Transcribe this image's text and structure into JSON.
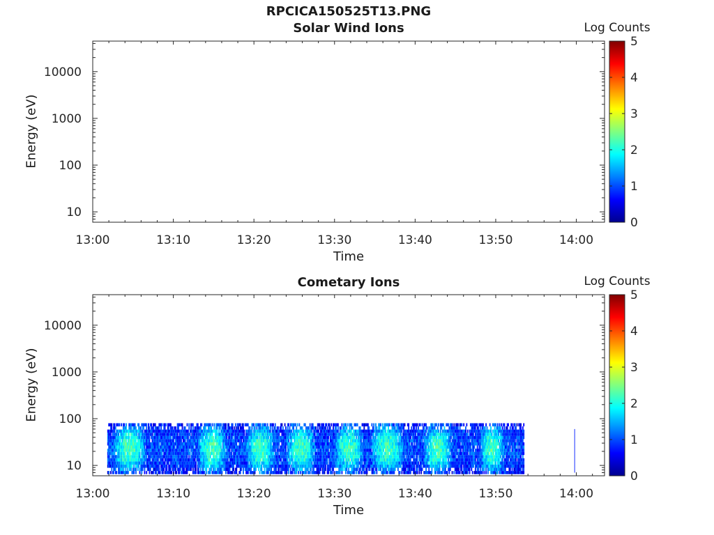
{
  "figure": {
    "title": "RPCICA150525T13.PNG"
  },
  "chart_data": [
    {
      "type": "heatmap",
      "title": "Solar Wind Ions",
      "xlabel": "Time",
      "ylabel": "Energy (eV)",
      "x_ticks": [
        "13:00",
        "13:10",
        "13:20",
        "13:30",
        "13:40",
        "13:50",
        "14:00"
      ],
      "y_ticks": [
        "10",
        "100",
        "1000",
        "10000"
      ],
      "y_scale": "log",
      "ylim": [
        6,
        45000
      ],
      "xlim_minutes": [
        0,
        63.5
      ],
      "colorbar": {
        "label": "Log Counts",
        "ticks": [
          "0",
          "1",
          "2",
          "3",
          "4",
          "5"
        ],
        "range": [
          0,
          5
        ],
        "colormap": "jet"
      },
      "data": []
    },
    {
      "type": "heatmap",
      "title": "Cometary Ions",
      "xlabel": "Time",
      "ylabel": "Energy (eV)",
      "x_ticks": [
        "13:00",
        "13:10",
        "13:20",
        "13:30",
        "13:40",
        "13:50",
        "14:00"
      ],
      "y_ticks": [
        "10",
        "100",
        "1000",
        "10000"
      ],
      "y_scale": "log",
      "ylim": [
        6,
        45000
      ],
      "xlim_minutes": [
        0,
        63.5
      ],
      "colorbar": {
        "label": "Log Counts",
        "ticks": [
          "0",
          "1",
          "2",
          "3",
          "4",
          "5"
        ],
        "range": [
          0,
          5
        ],
        "colormap": "jet"
      },
      "data": {
        "time_range_minutes": [
          1.8,
          53.4
        ],
        "energy_range_eV": [
          6.5,
          80
        ],
        "peak_log_counts": 2.2,
        "typical_log_counts": 1.0,
        "high_intensity_intervals_minutes": [
          [
            3,
            6
          ],
          [
            13.5,
            16
          ],
          [
            19.5,
            22
          ],
          [
            24.5,
            27
          ],
          [
            30.5,
            33
          ],
          [
            35,
            38
          ],
          [
            41.5,
            44
          ],
          [
            48.5,
            50.5
          ]
        ],
        "isolated_trace_minutes": 59.8
      }
    }
  ]
}
